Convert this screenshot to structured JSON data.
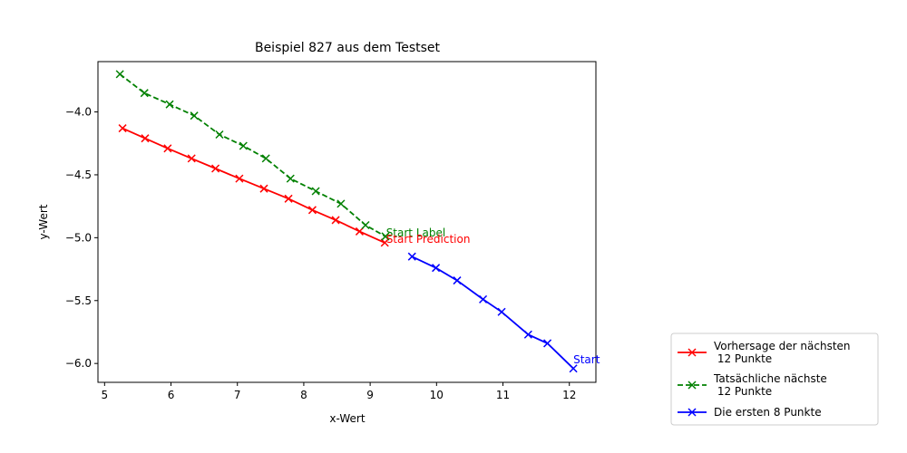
{
  "chart_data": {
    "type": "line",
    "title": "Beispiel 827 aus dem Testset",
    "xlabel": "x-Wert",
    "ylabel": "y-Wert",
    "xlim": [
      4.9,
      12.4
    ],
    "ylim": [
      -6.15,
      -3.6
    ],
    "xticks": [
      5,
      6,
      7,
      8,
      9,
      10,
      11,
      12
    ],
    "xtick_labels": [
      "5",
      "6",
      "7",
      "8",
      "9",
      "10",
      "11",
      "12"
    ],
    "yticks": [
      -6.0,
      -5.5,
      -5.0,
      -4.5,
      -4.0
    ],
    "ytick_labels": [
      "−6.0",
      "−5.5",
      "−5.0",
      "−4.5",
      "−4.0"
    ],
    "grid": false,
    "legend_position": "outside-bottom-right",
    "series": [
      {
        "name": "Vorhersage der nächsten\n 12 Punkte",
        "color": "#ff0000",
        "linestyle": "solid",
        "marker": "x",
        "x": [
          5.27,
          5.61,
          5.95,
          6.31,
          6.67,
          7.03,
          7.4,
          7.77,
          8.13,
          8.48,
          8.84,
          9.22
        ],
        "y": [
          -4.13,
          -4.21,
          -4.29,
          -4.37,
          -4.45,
          -4.53,
          -4.61,
          -4.69,
          -4.78,
          -4.86,
          -4.95,
          -5.04
        ]
      },
      {
        "name": "Tatsächliche nächste\n 12 Punkte",
        "color": "#008000",
        "linestyle": "dashed",
        "marker": "x",
        "x": [
          5.23,
          5.6,
          5.98,
          6.35,
          6.73,
          7.09,
          7.43,
          7.8,
          8.18,
          8.56,
          8.93,
          9.23
        ],
        "y": [
          -3.7,
          -3.85,
          -3.94,
          -4.03,
          -4.18,
          -4.27,
          -4.37,
          -4.53,
          -4.63,
          -4.73,
          -4.9,
          -4.99
        ]
      },
      {
        "name": "Die ersten 8 Punkte",
        "color": "#0000ff",
        "linestyle": "solid",
        "marker": "x",
        "x": [
          9.63,
          9.99,
          10.31,
          10.7,
          10.98,
          11.38,
          11.67,
          12.06
        ],
        "y": [
          -5.15,
          -5.24,
          -5.34,
          -5.49,
          -5.59,
          -5.77,
          -5.84,
          -6.04
        ]
      }
    ],
    "annotations": [
      {
        "text": "Start Label",
        "x": 9.24,
        "y": -4.99,
        "color": "#008000"
      },
      {
        "text": "Start Prediction",
        "x": 9.24,
        "y": -5.04,
        "color": "#ff0000"
      },
      {
        "text": "Start",
        "x": 12.06,
        "y": -6.0,
        "color": "#0000ff"
      }
    ]
  }
}
